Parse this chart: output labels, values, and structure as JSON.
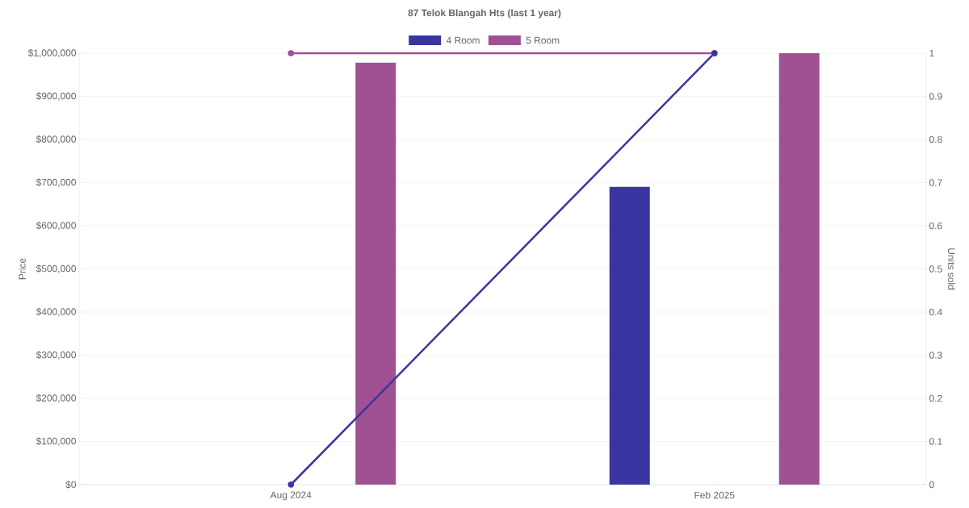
{
  "chart_data": {
    "type": "bar",
    "title": "87 Telok Blangah Hts (last 1 year)",
    "categories": [
      "Aug 2024",
      "Feb 2025"
    ],
    "series": [
      {
        "name": "4 Room",
        "color": "#3a35a0",
        "values": [
          null,
          690000
        ]
      },
      {
        "name": "5 Room",
        "color": "#9f5193",
        "values": [
          978000,
          1000000
        ]
      },
      {
        "type": "line",
        "axis": "y2",
        "color": "#3a35a0",
        "values": [
          0,
          1
        ]
      },
      {
        "type": "line",
        "axis": "y2",
        "color": "#9f5193",
        "values": [
          1,
          1
        ]
      }
    ],
    "ylabel": "Price",
    "y2label": "Units sold",
    "ylim": [
      0,
      1000000
    ],
    "yticks": [
      {
        "value": 0,
        "label": "$0"
      },
      {
        "value": 100000,
        "label": "$100,000"
      },
      {
        "value": 200000,
        "label": "$200,000"
      },
      {
        "value": 300000,
        "label": "$300,000"
      },
      {
        "value": 400000,
        "label": "$400,000"
      },
      {
        "value": 500000,
        "label": "$500,000"
      },
      {
        "value": 600000,
        "label": "$600,000"
      },
      {
        "value": 700000,
        "label": "$700,000"
      },
      {
        "value": 800000,
        "label": "$800,000"
      },
      {
        "value": 900000,
        "label": "$900,000"
      },
      {
        "value": 1000000,
        "label": "$1,000,000"
      }
    ],
    "y2lim": [
      0,
      1
    ],
    "y2ticks": [
      0,
      0.1,
      0.2,
      0.3,
      0.4,
      0.5,
      0.6,
      0.7,
      0.8,
      0.9,
      1
    ],
    "grid": "y",
    "legend": "top",
    "marker": "circle"
  }
}
